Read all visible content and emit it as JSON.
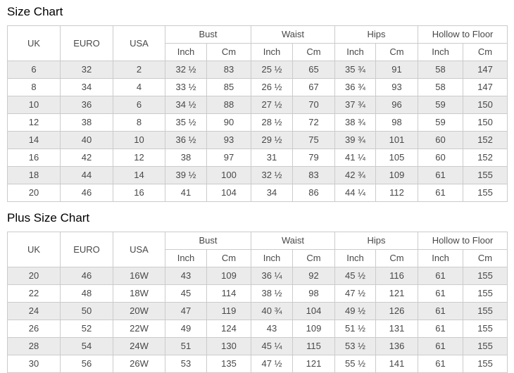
{
  "page": {
    "background_color": "#ffffff",
    "border_color": "#cbcbcb",
    "stripe_color": "#ebebeb",
    "text_color": "#484848"
  },
  "size_chart": {
    "title": "Size Chart",
    "header": {
      "standalone": [
        "UK",
        "EURO",
        "USA"
      ],
      "groups": [
        "Bust",
        "Waist",
        "Hips",
        "Hollow to Floor"
      ],
      "sub": [
        "Inch",
        "Cm"
      ]
    },
    "rows": [
      [
        "6",
        "32",
        "2",
        "32 ½",
        "83",
        "25 ½",
        "65",
        "35 ¾",
        "91",
        "58",
        "147"
      ],
      [
        "8",
        "34",
        "4",
        "33 ½",
        "85",
        "26 ½",
        "67",
        "36 ¾",
        "93",
        "58",
        "147"
      ],
      [
        "10",
        "36",
        "6",
        "34 ½",
        "88",
        "27 ½",
        "70",
        "37 ¾",
        "96",
        "59",
        "150"
      ],
      [
        "12",
        "38",
        "8",
        "35 ½",
        "90",
        "28 ½",
        "72",
        "38 ¾",
        "98",
        "59",
        "150"
      ],
      [
        "14",
        "40",
        "10",
        "36 ½",
        "93",
        "29 ½",
        "75",
        "39 ¾",
        "101",
        "60",
        "152"
      ],
      [
        "16",
        "42",
        "12",
        "38",
        "97",
        "31",
        "79",
        "41 ¼",
        "105",
        "60",
        "152"
      ],
      [
        "18",
        "44",
        "14",
        "39 ½",
        "100",
        "32 ½",
        "83",
        "42 ¾",
        "109",
        "61",
        "155"
      ],
      [
        "20",
        "46",
        "16",
        "41",
        "104",
        "34",
        "86",
        "44 ¼",
        "112",
        "61",
        "155"
      ]
    ]
  },
  "plus_size_chart": {
    "title": "Plus Size Chart",
    "header": {
      "standalone": [
        "UK",
        "EURO",
        "USA"
      ],
      "groups": [
        "Bust",
        "Waist",
        "Hips",
        "Hollow to Floor"
      ],
      "sub": [
        "Inch",
        "Cm"
      ]
    },
    "rows": [
      [
        "20",
        "46",
        "16W",
        "43",
        "109",
        "36 ¼",
        "92",
        "45 ½",
        "116",
        "61",
        "155"
      ],
      [
        "22",
        "48",
        "18W",
        "45",
        "114",
        "38 ½",
        "98",
        "47 ½",
        "121",
        "61",
        "155"
      ],
      [
        "24",
        "50",
        "20W",
        "47",
        "119",
        "40 ¾",
        "104",
        "49 ½",
        "126",
        "61",
        "155"
      ],
      [
        "26",
        "52",
        "22W",
        "49",
        "124",
        "43",
        "109",
        "51 ½",
        "131",
        "61",
        "155"
      ],
      [
        "28",
        "54",
        "24W",
        "51",
        "130",
        "45 ¼",
        "115",
        "53 ½",
        "136",
        "61",
        "155"
      ],
      [
        "30",
        "56",
        "26W",
        "53",
        "135",
        "47 ½",
        "121",
        "55 ½",
        "141",
        "61",
        "155"
      ]
    ]
  }
}
